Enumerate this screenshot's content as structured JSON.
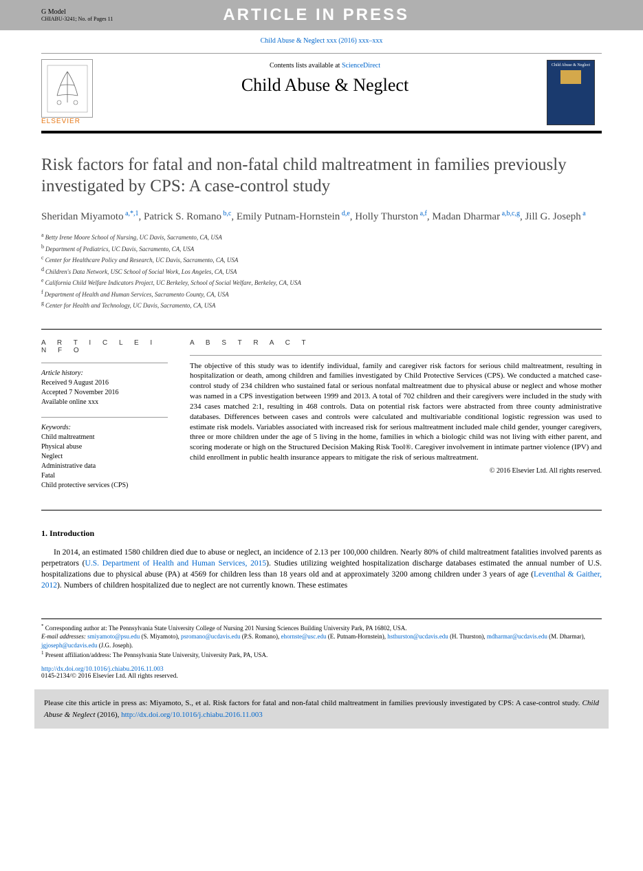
{
  "header": {
    "gmodel": "G Model",
    "ref": "CHIABU-3241;   No. of Pages 11",
    "banner": "ARTICLE IN PRESS"
  },
  "citation_top": "Child Abuse & Neglect xxx (2016) xxx–xxx",
  "journal_box": {
    "contents_prefix": "Contents lists available at ",
    "contents_link": "ScienceDirect",
    "name": "Child Abuse & Neglect",
    "publisher": "ELSEVIER",
    "cover_title": "Child Abuse & Neglect"
  },
  "title": "Risk factors for fatal and non-fatal child maltreatment in families previously investigated by CPS: A case-control study",
  "authors": [
    {
      "name": "Sheridan Miyamoto",
      "affs": "a,*,1"
    },
    {
      "name": "Patrick S. Romano",
      "affs": "b,c"
    },
    {
      "name": "Emily Putnam-Hornstein",
      "affs": "d,e"
    },
    {
      "name": "Holly Thurston",
      "affs": "a,f"
    },
    {
      "name": "Madan Dharmar",
      "affs": "a,b,c,g"
    },
    {
      "name": "Jill G. Joseph",
      "affs": "a"
    }
  ],
  "affiliations": [
    {
      "key": "a",
      "text": "Betty Irene Moore School of Nursing, UC Davis, Sacramento, CA, USA"
    },
    {
      "key": "b",
      "text": "Department of Pediatrics, UC Davis, Sacramento, CA, USA"
    },
    {
      "key": "c",
      "text": "Center for Healthcare Policy and Research, UC Davis, Sacramento, CA, USA"
    },
    {
      "key": "d",
      "text": "Children's Data Network, USC School of Social Work, Los Angeles, CA, USA"
    },
    {
      "key": "e",
      "text": "California Child Welfare Indicators Project, UC Berkeley, School of Social Welfare, Berkeley, CA, USA"
    },
    {
      "key": "f",
      "text": "Department of Health and Human Services, Sacramento County, CA, USA"
    },
    {
      "key": "g",
      "text": "Center for Health and Technology, UC Davis, Sacramento, CA, USA"
    }
  ],
  "article_info": {
    "head": "a r t i c l e   i n f o",
    "history_label": "Article history:",
    "received": "Received 9 August 2016",
    "accepted": "Accepted 7 November 2016",
    "available": "Available online xxx",
    "keywords_label": "Keywords:",
    "keywords": [
      "Child maltreatment",
      "Physical abuse",
      "Neglect",
      "Administrative data",
      "Fatal",
      "Child protective services (CPS)"
    ]
  },
  "abstract": {
    "head": "a b s t r a c t",
    "text": "The objective of this study was to identify individual, family and caregiver risk factors for serious child maltreatment, resulting in hospitalization or death, among children and families investigated by Child Protective Services (CPS). We conducted a matched case-control study of 234 children who sustained fatal or serious nonfatal maltreatment due to physical abuse or neglect and whose mother was named in a CPS investigation between 1999 and 2013. A total of 702 children and their caregivers were included in the study with 234 cases matched 2:1, resulting in 468 controls. Data on potential risk factors were abstracted from three county administrative databases. Differences between cases and controls were calculated and multivariable conditional logistic regression was used to estimate risk models. Variables associated with increased risk for serious maltreatment included male child gender, younger caregivers, three or more children under the age of 5 living in the home, families in which a biologic child was not living with either parent, and scoring moderate or high on the Structured Decision Making Risk Tool®. Caregiver involvement in intimate partner violence (IPV) and child enrollment in public health insurance appears to mitigate the risk of serious maltreatment.",
    "copyright": "© 2016 Elsevier Ltd. All rights reserved."
  },
  "intro": {
    "head": "1.  Introduction",
    "p1_a": "In 2014, an estimated 1580 children died due to abuse or neglect, an incidence of 2.13 per 100,000 children. Nearly 80% of child maltreatment fatalities involved parents as perpetrators (",
    "p1_link1": "U.S. Department of Health and Human Services, 2015",
    "p1_b": "). Studies utilizing weighted hospitalization discharge databases estimated the annual number of U.S. hospitalizations due to physical abuse (PA) at 4569 for children less than 18 years old and at approximately 3200 among children under 3 years of age (",
    "p1_link2": "Leventhal & Gaither, 2012",
    "p1_c": "). Numbers of children hospitalized due to neglect are not currently known. These estimates"
  },
  "footnotes": {
    "corresp_mark": "*",
    "corresp": "Corresponding author at: The Pennsylvania State University College of Nursing 201 Nursing Sciences Building University Park, PA 16802, USA.",
    "email_label": "E-mail addresses:",
    "emails": [
      {
        "addr": "smiyamoto@psu.edu",
        "who": "(S. Miyamoto)"
      },
      {
        "addr": "psromano@ucdavis.edu",
        "who": "(P.S. Romano)"
      },
      {
        "addr": "ehornste@usc.edu",
        "who": "(E. Putnam-Hornstein)"
      },
      {
        "addr": "hsthurston@ucdavis.edu",
        "who": "(H. Thurston)"
      },
      {
        "addr": "mdharmar@ucdavis.edu",
        "who": "(M. Dharmar)"
      },
      {
        "addr": "jgjoseph@ucdavis.edu",
        "who": "(J.G. Joseph)"
      }
    ],
    "note1_mark": "1",
    "note1": "Present affiliation/address: The Pennsylvania State University, University Park, PA, USA."
  },
  "doi": {
    "url": "http://dx.doi.org/10.1016/j.chiabu.2016.11.003",
    "issn": "0145-2134/© 2016 Elsevier Ltd. All rights reserved."
  },
  "cite_box": {
    "prefix": "Please cite this article in press as: Miyamoto, S., et al. Risk factors for fatal and non-fatal child maltreatment in families previously investigated by CPS: A case-control study. ",
    "journal_italic": "Child Abuse & Neglect",
    "year": " (2016), ",
    "url": "http://dx.doi.org/10.1016/j.chiabu.2016.11.003"
  }
}
